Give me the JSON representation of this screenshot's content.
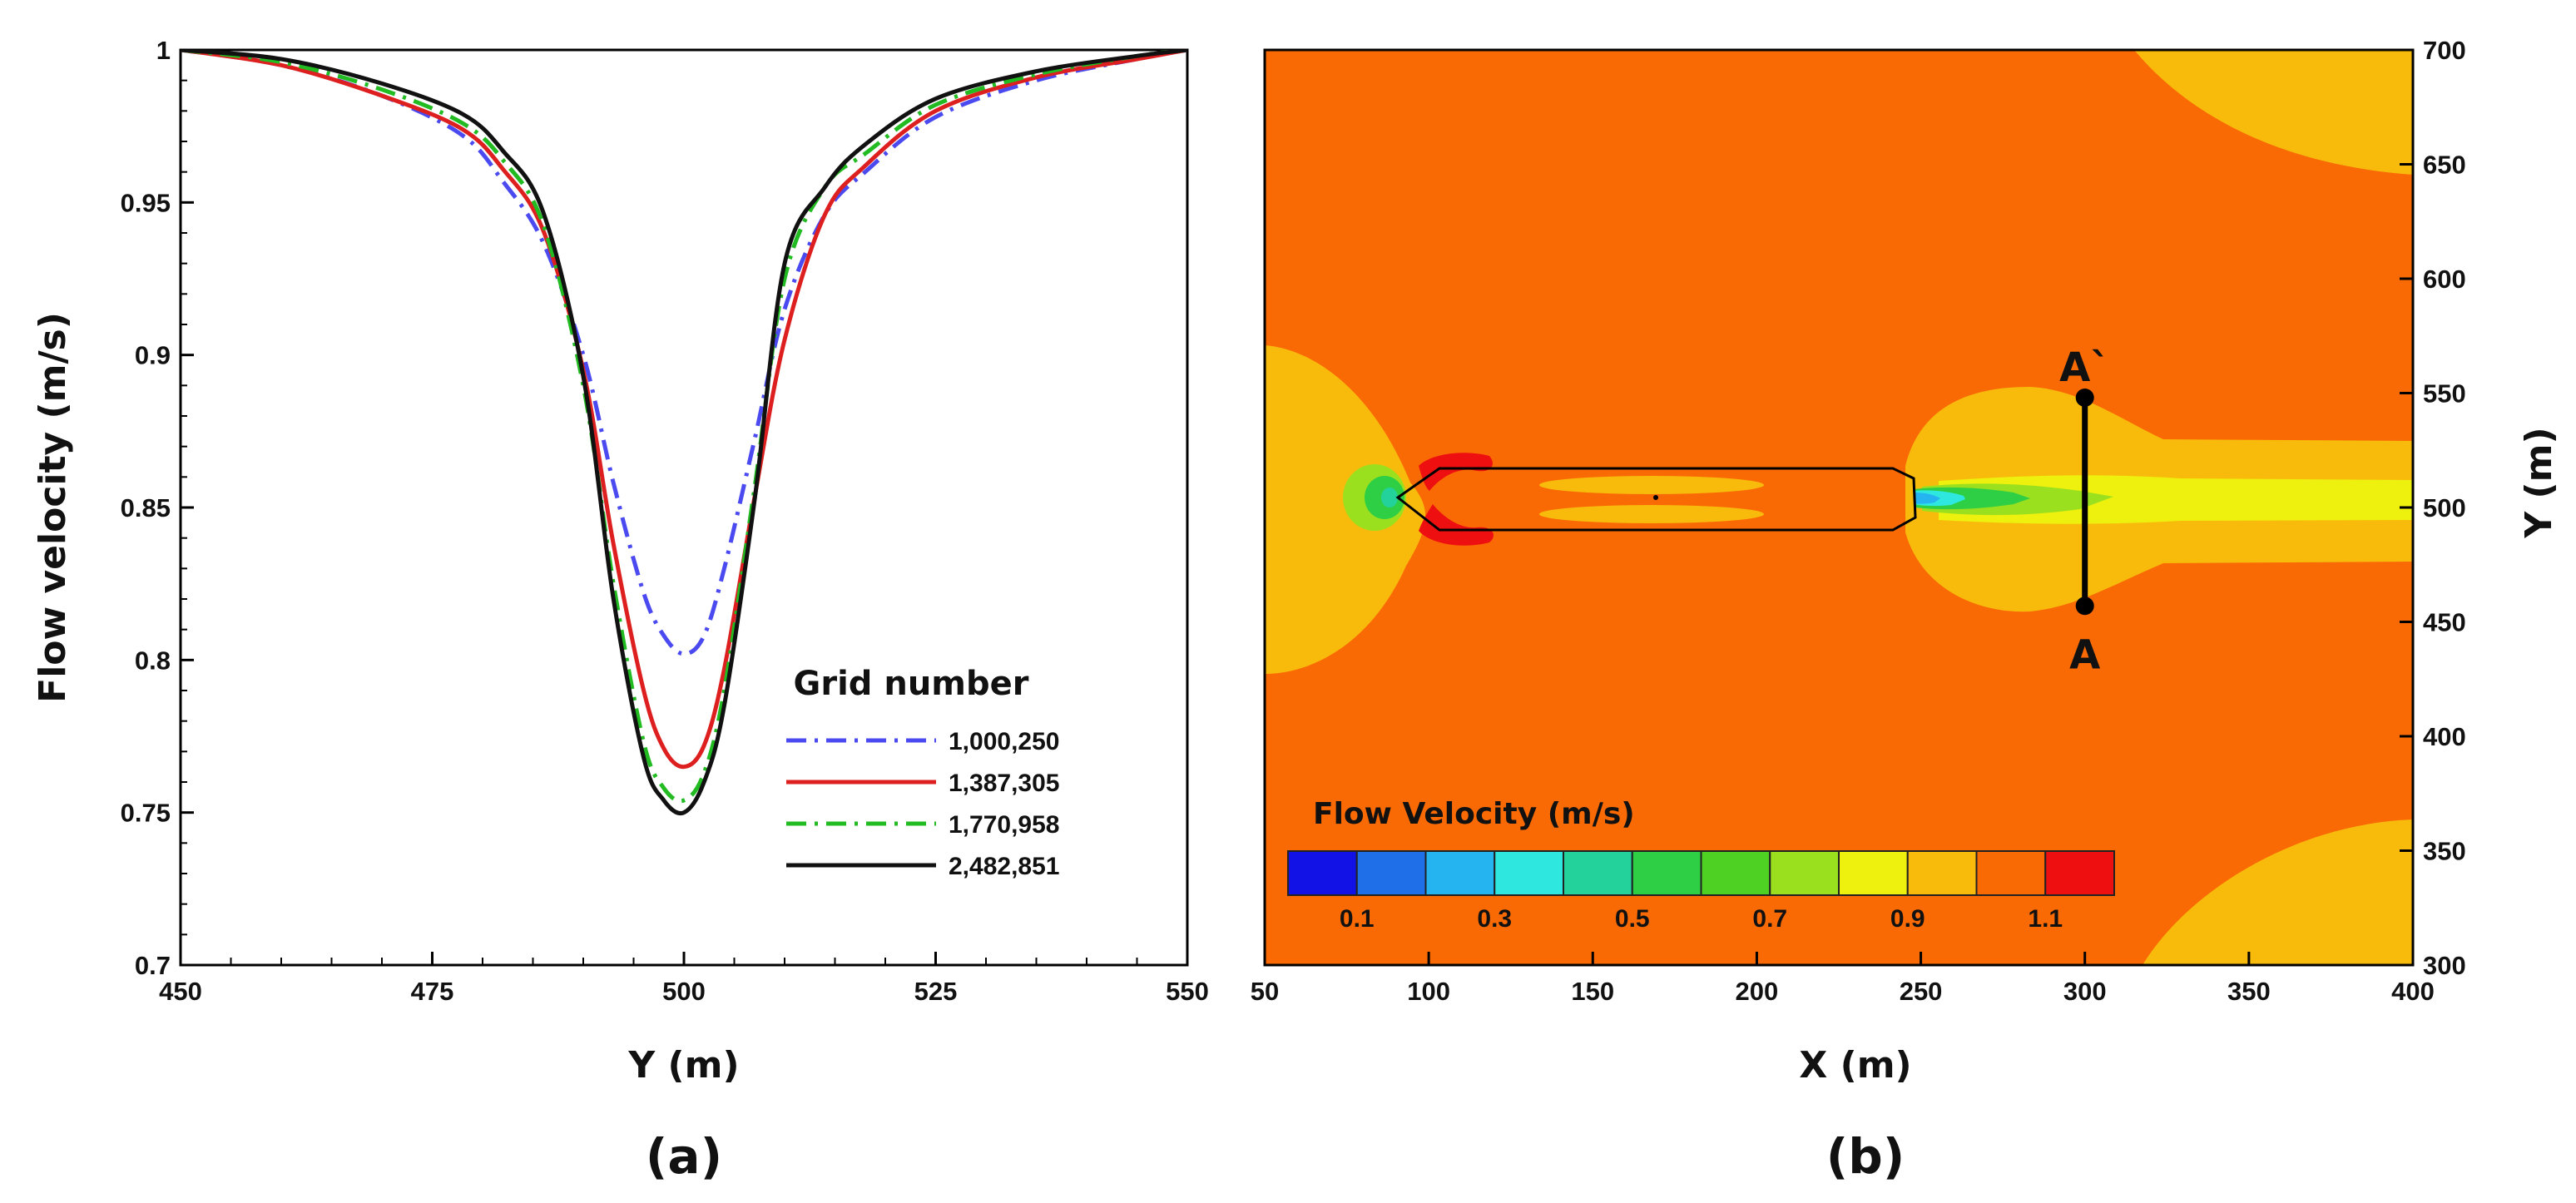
{
  "chart_data": [
    {
      "panel": "(a)",
      "type": "line",
      "xlabel": "Y (m)",
      "ylabel": "Flow velocity (m/s)",
      "xlim": [
        450,
        550
      ],
      "ylim": [
        0.7,
        1.0
      ],
      "xticks": [
        "450",
        "475",
        "500",
        "525",
        "550"
      ],
      "yticks": [
        "0.7",
        "0.75",
        "0.8",
        "0.85",
        "0.9",
        "0.95",
        "1"
      ],
      "legend_title": "Grid number",
      "x": [
        450,
        460,
        470,
        478,
        482,
        486,
        490,
        493,
        496,
        498,
        500,
        502,
        504,
        507,
        510,
        514,
        518,
        525,
        535,
        545,
        550
      ],
      "series": [
        {
          "name": "1,000,250",
          "color": "#4a4af0",
          "dash": "24,10,4,10",
          "values": [
            1.0,
            0.995,
            0.985,
            0.972,
            0.957,
            0.937,
            0.9,
            0.858,
            0.822,
            0.808,
            0.802,
            0.808,
            0.83,
            0.872,
            0.915,
            0.946,
            0.96,
            0.978,
            0.99,
            0.997,
            1.0
          ]
        },
        {
          "name": "1,387,305",
          "color": "#dd1f1f",
          "dash": "",
          "values": [
            1.0,
            0.995,
            0.985,
            0.974,
            0.961,
            0.941,
            0.895,
            0.838,
            0.79,
            0.771,
            0.765,
            0.772,
            0.797,
            0.853,
            0.905,
            0.946,
            0.962,
            0.98,
            0.991,
            0.997,
            1.0
          ]
        },
        {
          "name": "1,770,958",
          "color": "#22bb22",
          "dash": "24,10,4,10",
          "values": [
            1.0,
            0.996,
            0.987,
            0.976,
            0.964,
            0.943,
            0.89,
            0.825,
            0.773,
            0.758,
            0.754,
            0.763,
            0.79,
            0.856,
            0.925,
            0.955,
            0.966,
            0.982,
            0.992,
            0.998,
            1.0
          ]
        },
        {
          "name": "2,482,851",
          "color": "#111111",
          "dash": "",
          "values": [
            1.0,
            0.997,
            0.989,
            0.979,
            0.967,
            0.947,
            0.893,
            0.82,
            0.768,
            0.754,
            0.75,
            0.76,
            0.785,
            0.852,
            0.93,
            0.955,
            0.969,
            0.984,
            0.993,
            0.998,
            1.0
          ]
        }
      ]
    },
    {
      "panel": "(b)",
      "type": "heatmap",
      "xlabel": "X (m)",
      "ylabel": "Y (m)",
      "xlim": [
        50,
        400
      ],
      "ylim": [
        300,
        700
      ],
      "xticks": [
        "50",
        "100",
        "150",
        "200",
        "250",
        "300",
        "350",
        "400"
      ],
      "yticks": [
        "300",
        "350",
        "400",
        "450",
        "500",
        "550",
        "600",
        "650",
        "700"
      ],
      "colorbar_title": "Flow Velocity (m/s)",
      "colorbar_levels": [
        0.1,
        0.2,
        0.3,
        0.4,
        0.5,
        0.6,
        0.7,
        0.8,
        0.9,
        1.0,
        1.1
      ],
      "colorbar_ticks": [
        "0.1",
        "0.3",
        "0.5",
        "0.7",
        "0.9",
        "1.1"
      ],
      "colorbar_colors": [
        "#1212e6",
        "#1f6fe8",
        "#26b4f0",
        "#2ee8e0",
        "#22d29a",
        "#2fcf45",
        "#4fd124",
        "#9be01e",
        "#eef00e",
        "#f8bb0c",
        "#fa6a04",
        "#ee1010"
      ],
      "background_color": "#fa6a04",
      "section_line": {
        "x": 300,
        "y_start": 457,
        "y_end": 548,
        "label_start": "A",
        "label_end": "A`"
      },
      "ship_outline": {
        "x_start": 90,
        "x_end": 252,
        "y_min": 487,
        "y_max": 518
      }
    }
  ],
  "panel_labels": [
    "(a)",
    "(b)"
  ]
}
